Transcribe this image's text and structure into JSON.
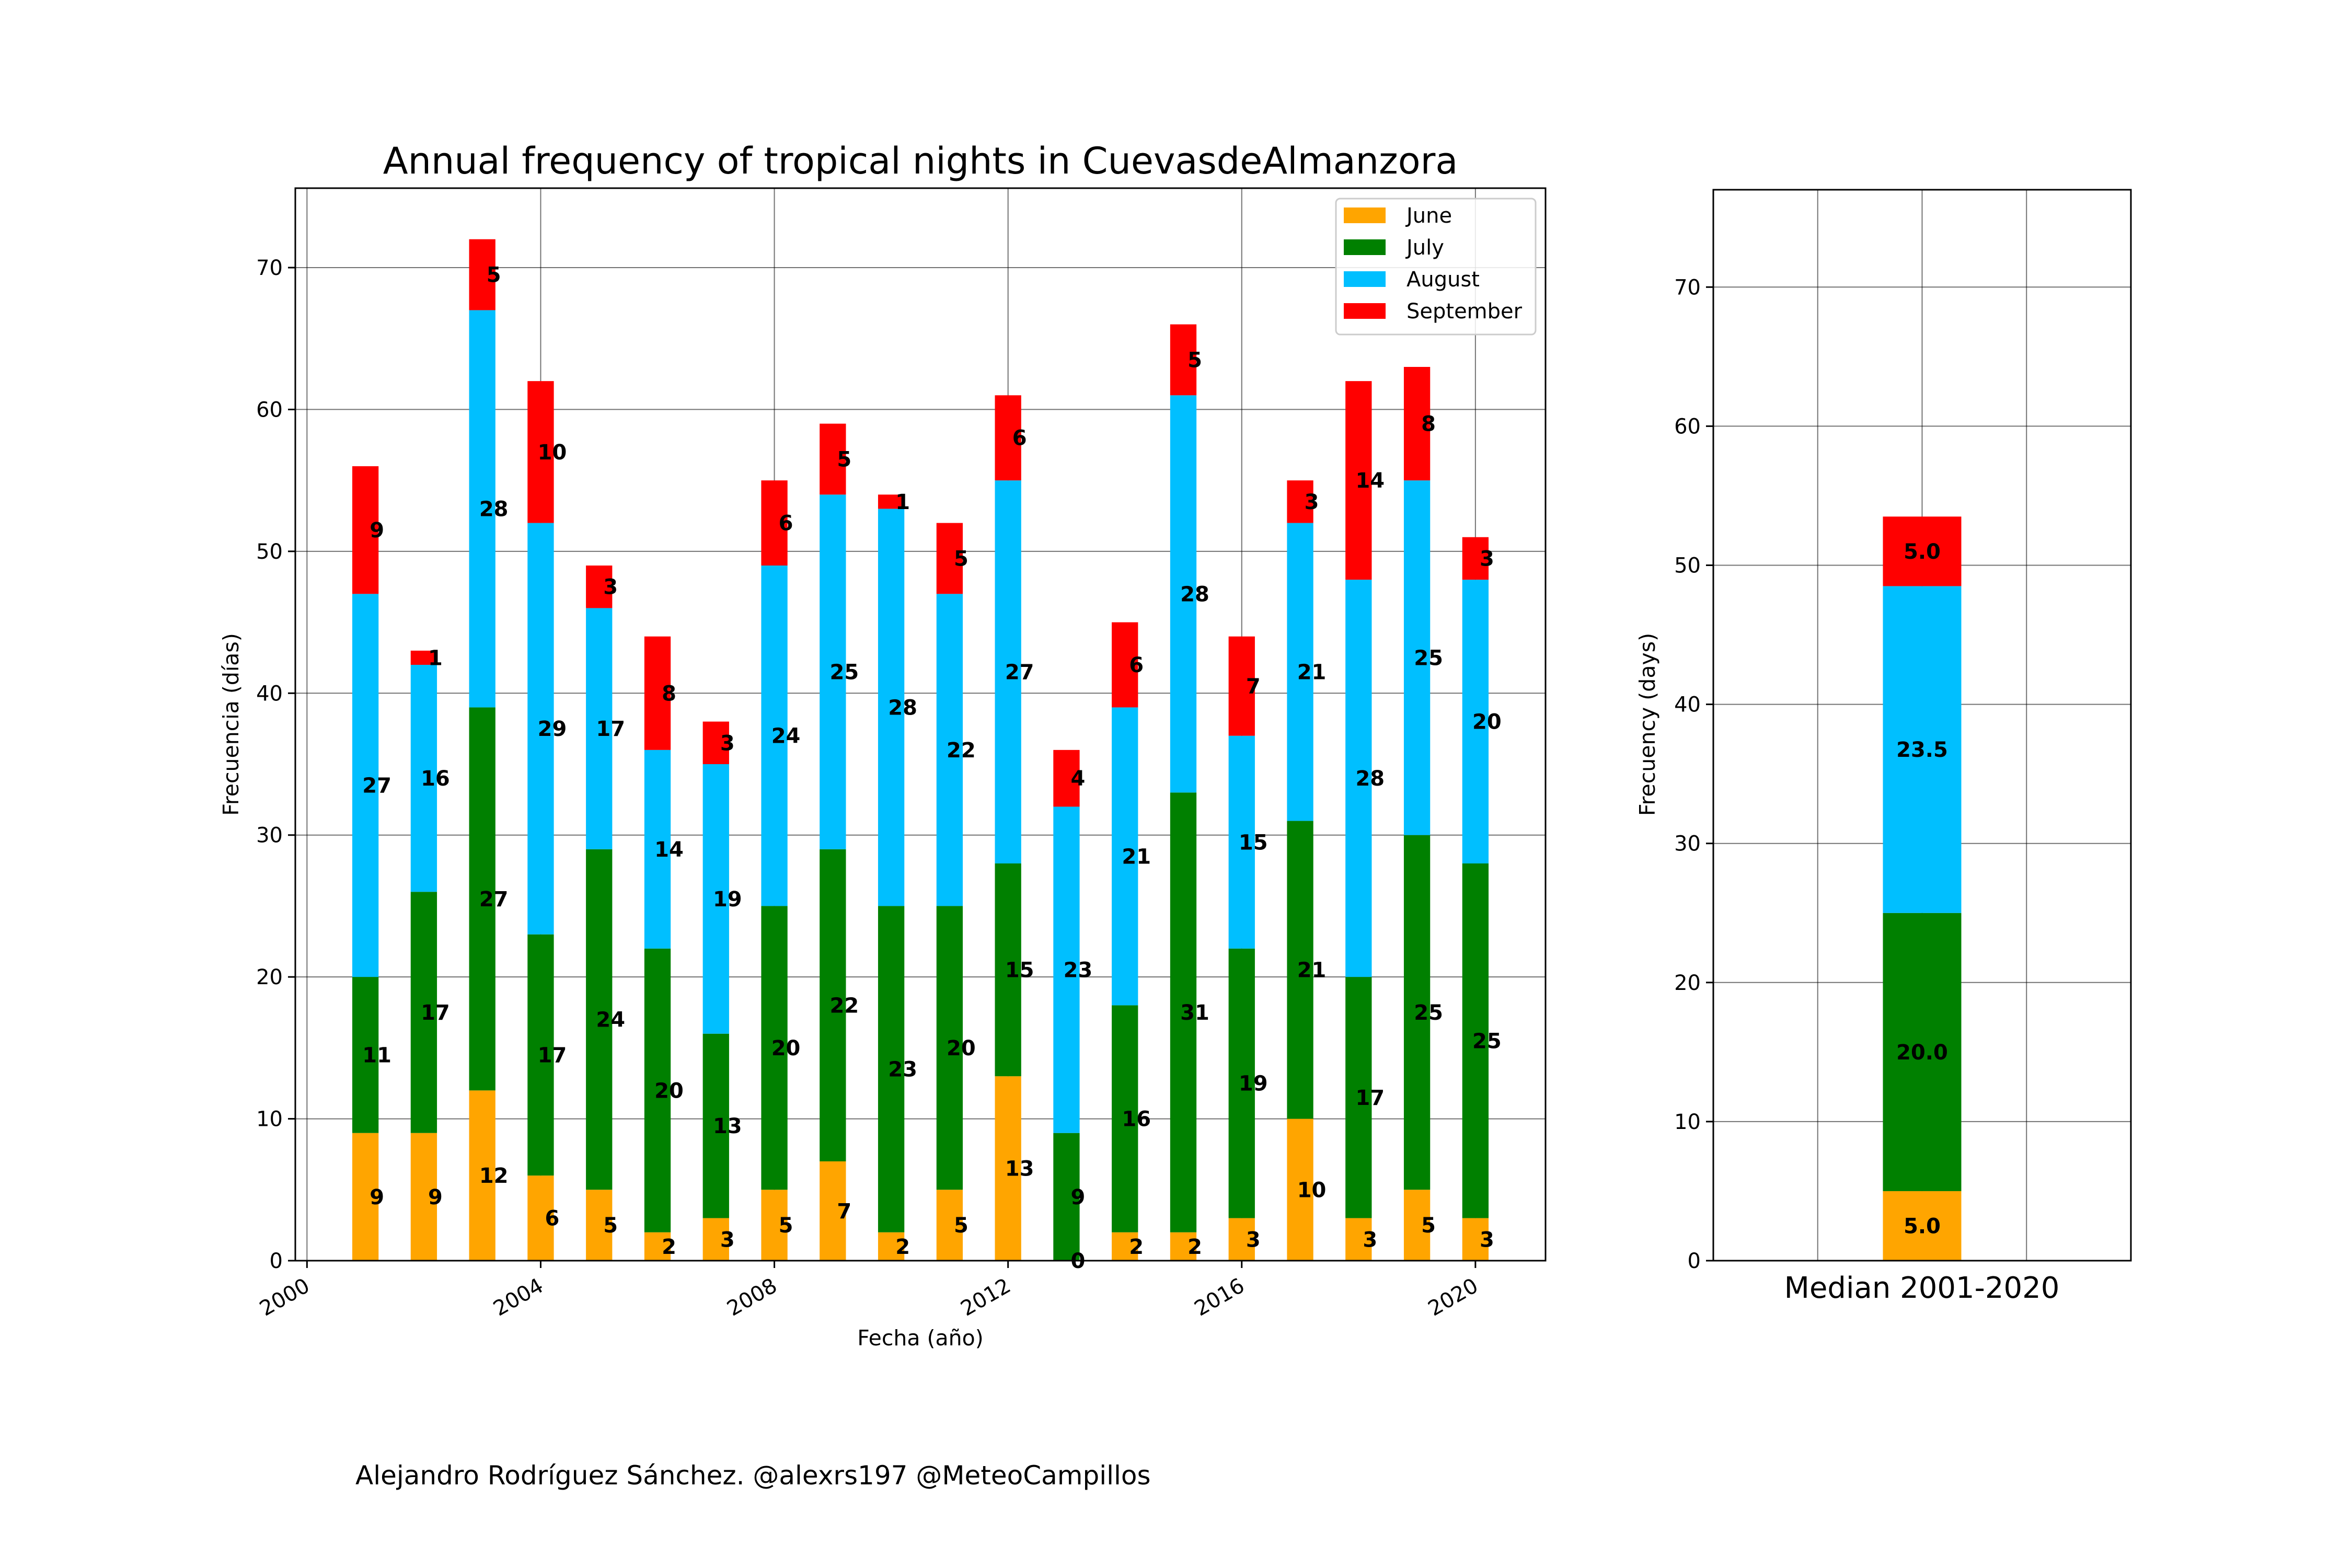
{
  "credit": "Alejandro Rodríguez Sánchez. @alexrs197 @MeteoCampillos",
  "colors": {
    "June": "#ffa500",
    "July": "#008000",
    "August": "#00bfff",
    "September": "#ff0000"
  },
  "chart_data": [
    {
      "type": "bar",
      "stacked": true,
      "title": "Annual frequency of tropical nights in CuevasdeAlmanzora",
      "xlabel": "Fecha (año)",
      "ylabel": "Frecuencia (días)",
      "xlim": [
        1999.8,
        2021.2
      ],
      "ylim": [
        0,
        75.6
      ],
      "xticks": [
        2000,
        2004,
        2008,
        2012,
        2016,
        2020
      ],
      "xtick_labels": [
        "2000",
        "2004",
        "2008",
        "2012",
        "2016",
        "2020"
      ],
      "yticks": [
        0,
        10,
        20,
        30,
        40,
        50,
        60,
        70
      ],
      "ytick_labels": [
        "0",
        "10",
        "20",
        "30",
        "40",
        "50",
        "60",
        "70"
      ],
      "grid": true,
      "legend": "top-right",
      "x": [
        2001,
        2002,
        2003,
        2004,
        2005,
        2006,
        2007,
        2008,
        2009,
        2010,
        2011,
        2012,
        2013,
        2014,
        2015,
        2016,
        2017,
        2018,
        2019,
        2020
      ],
      "series": [
        {
          "name": "June",
          "values": [
            9,
            9,
            12,
            6,
            5,
            2,
            3,
            5,
            7,
            2,
            5,
            13,
            0,
            2,
            2,
            3,
            10,
            3,
            5,
            3
          ]
        },
        {
          "name": "July",
          "values": [
            11,
            17,
            27,
            17,
            24,
            20,
            13,
            20,
            22,
            23,
            20,
            15,
            9,
            16,
            31,
            19,
            21,
            17,
            25,
            25
          ]
        },
        {
          "name": "August",
          "values": [
            27,
            16,
            28,
            29,
            17,
            14,
            19,
            24,
            25,
            28,
            22,
            27,
            23,
            21,
            28,
            15,
            21,
            28,
            25,
            20
          ]
        },
        {
          "name": "September",
          "values": [
            9,
            1,
            5,
            10,
            3,
            8,
            3,
            6,
            5,
            1,
            5,
            6,
            4,
            6,
            5,
            7,
            3,
            14,
            8,
            3
          ]
        }
      ]
    },
    {
      "type": "bar",
      "stacked": true,
      "title": "",
      "xlabel": "Median 2001-2020",
      "ylabel": "Frecuency (days)",
      "ylim": [
        0,
        77
      ],
      "yticks": [
        0,
        10,
        20,
        30,
        40,
        50,
        60,
        70
      ],
      "ytick_labels": [
        "0",
        "10",
        "20",
        "30",
        "40",
        "50",
        "60",
        "70"
      ],
      "grid": true,
      "series": [
        {
          "name": "June",
          "values": [
            5.0
          ],
          "label": "5.0"
        },
        {
          "name": "July",
          "values": [
            20.0
          ],
          "label": "20.0"
        },
        {
          "name": "August",
          "values": [
            23.5
          ],
          "label": "23.5"
        },
        {
          "name": "September",
          "values": [
            5.0
          ],
          "label": "5.0"
        }
      ]
    }
  ]
}
